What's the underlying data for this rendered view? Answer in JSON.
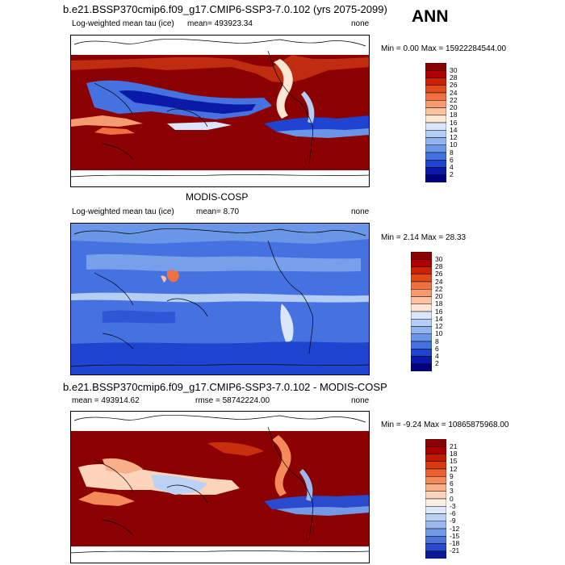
{
  "header": {
    "case_title": "b.e21.BSSP370cmip6.f09_g17.CMIP6-SSP3-7.0.102 (yrs 2075-2099)",
    "season": "ANN"
  },
  "panels": [
    {
      "id": "model",
      "title": "",
      "left_label": "Log-weighted mean tau (ice)",
      "center_label": "mean=  493923.34",
      "right_label": "none",
      "minmax": "Min =   0.00 Max = 15922284544.00",
      "levels": [
        "30",
        "28",
        "26",
        "24",
        "22",
        "20",
        "18",
        "16",
        "14",
        "12",
        "10",
        "8",
        "6",
        "4",
        "2"
      ],
      "colors": [
        "#8b0000",
        "#b00000",
        "#cc2200",
        "#e34a1a",
        "#f07040",
        "#f69b70",
        "#fbc3a0",
        "#fde6d2",
        "#d9e6fb",
        "#b3cdf5",
        "#8fb4ee",
        "#6a96e8",
        "#4572e0",
        "#1f44d0",
        "#0a1aa8",
        "#000080"
      ]
    },
    {
      "id": "obs",
      "title": "MODIS-COSP",
      "left_label": "Log-weighted mean tau (ice)",
      "center_label": "mean=   8.70",
      "right_label": "none",
      "minmax": "Min =  2.14 Max =  28.33",
      "levels": [
        "30",
        "28",
        "26",
        "24",
        "22",
        "20",
        "18",
        "16",
        "14",
        "12",
        "10",
        "8",
        "6",
        "4",
        "2"
      ],
      "colors": [
        "#8b0000",
        "#b00000",
        "#cc2200",
        "#e34a1a",
        "#f07040",
        "#f69b70",
        "#fbc3a0",
        "#fde6d2",
        "#d9e6fb",
        "#b3cdf5",
        "#8fb4ee",
        "#6a96e8",
        "#4572e0",
        "#1f44d0",
        "#0a1aa8",
        "#000080"
      ]
    },
    {
      "id": "diff",
      "title": "b.e21.BSSP370cmip6.f09_g17.CMIP6-SSP3-7.0.102 - MODIS-COSP",
      "left_label": "mean = 493914.62",
      "center_label": "rmse = 58742224.00",
      "right_label": "none",
      "minmax": "Min =  -9.24 Max = 10865875968.00",
      "levels": [
        "21",
        "18",
        "15",
        "12",
        "9",
        "6",
        "3",
        "0",
        "-3",
        "-6",
        "-9",
        "-12",
        "-15",
        "-18",
        "-21"
      ],
      "colors": [
        "#8b0000",
        "#a80000",
        "#c41a00",
        "#d83a10",
        "#ea6030",
        "#f48a5a",
        "#f9b08a",
        "#fcd4bc",
        "#fdeee4",
        "#dde8fa",
        "#bcd2f4",
        "#98b8ee",
        "#7398e6",
        "#4e74dc",
        "#2a4ccc",
        "#0a1a9a"
      ]
    }
  ]
}
